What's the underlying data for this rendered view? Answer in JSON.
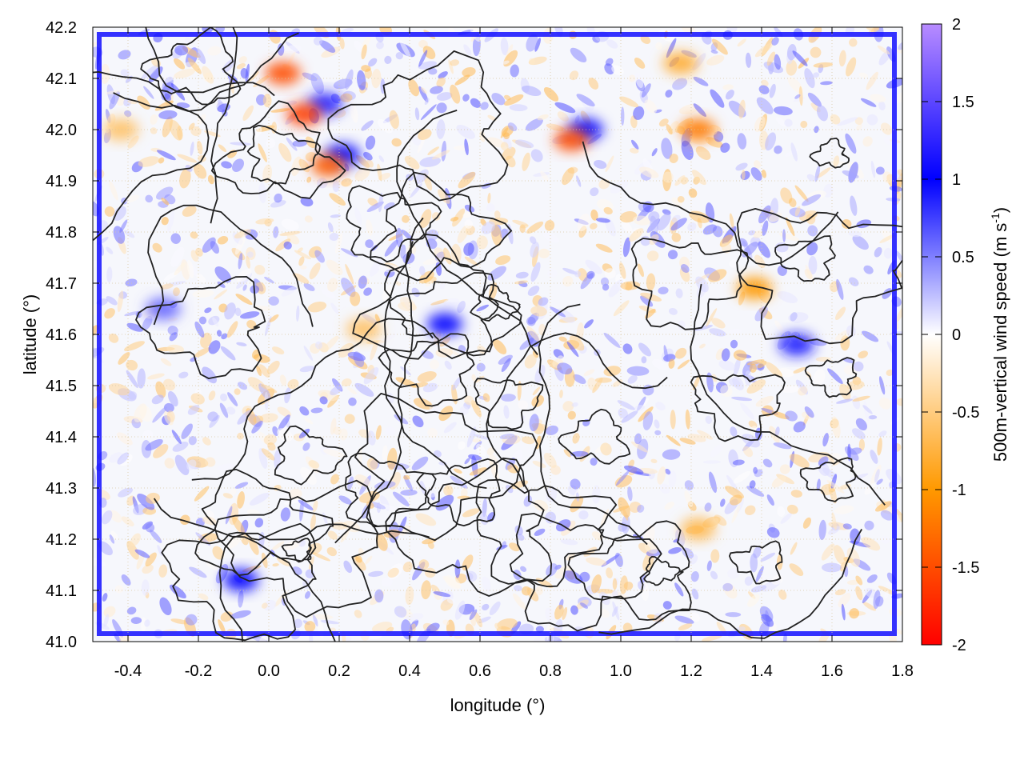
{
  "chart_data": {
    "type": "heatmap",
    "title": "",
    "xlabel": "longitude (°)",
    "ylabel": "latitude (°)",
    "xlim": [
      -0.5,
      1.8
    ],
    "ylim": [
      41.0,
      42.2
    ],
    "xticks": [
      -0.4,
      -0.2,
      0.0,
      0.2,
      0.4,
      0.6,
      0.8,
      1.0,
      1.2,
      1.4,
      1.6,
      1.8
    ],
    "xtick_labels": [
      "-0.4",
      "-0.2",
      "0.0",
      "0.2",
      "0.4",
      "0.6",
      "0.8",
      "1.0",
      "1.2",
      "1.4",
      "1.6",
      "1.8"
    ],
    "yticks": [
      41.0,
      41.1,
      41.2,
      41.3,
      41.4,
      41.5,
      41.6,
      41.7,
      41.8,
      41.9,
      42.0,
      42.1,
      42.2
    ],
    "ytick_labels": [
      "41.0",
      "41.1",
      "41.2",
      "41.3",
      "41.4",
      "41.5",
      "41.6",
      "41.7",
      "41.8",
      "41.9",
      "42.0",
      "42.1",
      "42.2"
    ],
    "grid": true,
    "colorbar": {
      "label_prefix": "500m-vertical wind speed (m s",
      "label_exp": "-1",
      "label_suffix": ")",
      "range": [
        -2,
        2
      ],
      "ticks": [
        2,
        1.5,
        1,
        0.5,
        0,
        -0.5,
        -1,
        -1.5,
        -2
      ],
      "tick_labels": [
        "2",
        "1.5",
        "1",
        "0.5",
        "0",
        "-0.5",
        "-1",
        "-1.5",
        "-2"
      ],
      "colors": {
        "max": "#b88cff",
        "high": "#0000ff",
        "zero": "#ffffff",
        "low": "#ff9900",
        "min": "#ff0000"
      }
    },
    "features": {
      "upward_hotspots": [
        {
          "lon": 0.16,
          "lat": 42.05,
          "value": 1.2
        },
        {
          "lon": 0.21,
          "lat": 41.95,
          "value": 1.0
        },
        {
          "lon": 0.5,
          "lat": 41.62,
          "value": 1.0
        },
        {
          "lon": -0.08,
          "lat": 41.12,
          "value": 1.0
        },
        {
          "lon": 0.9,
          "lat": 42.0,
          "value": 1.0
        },
        {
          "lon": 1.5,
          "lat": 41.58,
          "value": 0.9
        },
        {
          "lon": -0.3,
          "lat": 41.65,
          "value": 0.6
        }
      ],
      "downward_hotspots": [
        {
          "lon": 0.1,
          "lat": 42.03,
          "value": -1.6
        },
        {
          "lon": 0.04,
          "lat": 42.11,
          "value": -1.5
        },
        {
          "lon": 0.17,
          "lat": 41.93,
          "value": -1.4
        },
        {
          "lon": 0.86,
          "lat": 41.98,
          "value": -1.5
        },
        {
          "lon": 1.22,
          "lat": 42.0,
          "value": -1.2
        },
        {
          "lon": 1.38,
          "lat": 41.69,
          "value": -1.0
        },
        {
          "lon": 1.17,
          "lat": 42.13,
          "value": -0.8
        },
        {
          "lon": 1.22,
          "lat": 41.22,
          "value": -0.7
        },
        {
          "lon": 0.27,
          "lat": 41.61,
          "value": -0.6
        },
        {
          "lon": -0.42,
          "lat": 42.0,
          "value": -0.6
        }
      ]
    }
  }
}
